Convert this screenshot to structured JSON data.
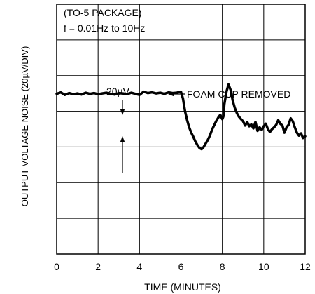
{
  "chart_data": {
    "type": "line",
    "annotations": {
      "package": "(TO-5 PACKAGE)",
      "bandwidth": "f = 0.01Hz to 10Hz",
      "scale": "20µV",
      "event": "FOAM CUP REMOVED"
    },
    "xlabel": "TIME (MINUTES)",
    "ylabel": "OUTPUT VOLTAGE NOISE (20µV/DIV)",
    "xlim": [
      0,
      12
    ],
    "ylim": [
      0,
      7
    ],
    "x_ticks": [
      "0",
      "2",
      "4",
      "6",
      "8",
      "10",
      "12"
    ],
    "grid": true,
    "series": [
      {
        "x": [
          0.0,
          0.2,
          0.4,
          0.6,
          0.8,
          1.0,
          1.2,
          1.4,
          1.6,
          1.8,
          2.0,
          2.2,
          2.4,
          2.6,
          2.8,
          3.0,
          3.2,
          3.4,
          3.6,
          3.8,
          4.0,
          4.2,
          4.4,
          4.6,
          4.8,
          5.0,
          5.2,
          5.4,
          5.6,
          5.8,
          6.0,
          6.1,
          6.2,
          6.3,
          6.4,
          6.5,
          6.6,
          6.7,
          6.8,
          6.9,
          7.0,
          7.1,
          7.2,
          7.3,
          7.4,
          7.5,
          7.6,
          7.7,
          7.8,
          7.9,
          8.0,
          8.05,
          8.1,
          8.2,
          8.3,
          8.4,
          8.5,
          8.6,
          8.7,
          8.8,
          8.9,
          9.0,
          9.1,
          9.2,
          9.3,
          9.4,
          9.5,
          9.6,
          9.7,
          9.8,
          9.9,
          10.0,
          10.1,
          10.2,
          10.3,
          10.4,
          10.5,
          10.6,
          10.7,
          10.8,
          10.9,
          11.0,
          11.1,
          11.2,
          11.3,
          11.4,
          11.5,
          11.6,
          11.7,
          11.8,
          11.9,
          12.0
        ],
        "y": [
          4.49,
          4.53,
          4.46,
          4.51,
          4.48,
          4.5,
          4.47,
          4.52,
          4.49,
          4.51,
          4.48,
          4.5,
          4.52,
          4.49,
          4.47,
          4.51,
          4.5,
          4.48,
          4.52,
          4.49,
          4.46,
          4.55,
          4.51,
          4.53,
          4.5,
          4.52,
          4.49,
          4.53,
          4.51,
          4.52,
          4.55,
          4.35,
          4.0,
          3.75,
          3.55,
          3.4,
          3.28,
          3.15,
          3.05,
          2.97,
          2.94,
          3.0,
          3.1,
          3.2,
          3.32,
          3.48,
          3.6,
          3.72,
          3.82,
          3.9,
          3.78,
          3.85,
          4.2,
          4.55,
          4.75,
          4.6,
          4.3,
          4.1,
          3.95,
          3.85,
          3.78,
          3.72,
          3.6,
          3.7,
          3.58,
          3.63,
          3.52,
          3.7,
          3.45,
          3.55,
          3.48,
          3.58,
          3.65,
          3.5,
          3.42,
          3.5,
          3.55,
          3.62,
          3.75,
          3.65,
          3.6,
          3.4,
          3.55,
          3.62,
          3.8,
          3.72,
          3.55,
          3.4,
          3.32,
          3.38,
          3.25,
          3.3
        ]
      }
    ]
  }
}
